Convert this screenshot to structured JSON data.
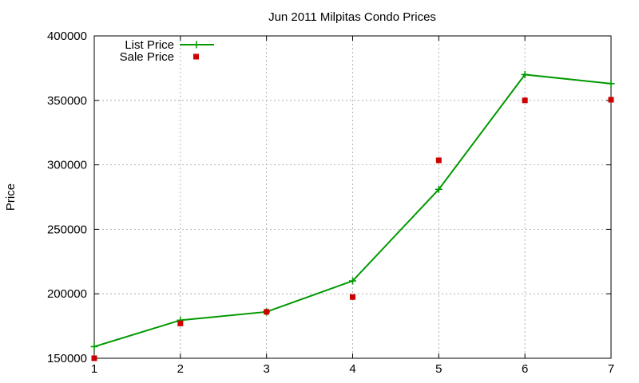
{
  "chart_data": {
    "type": "line",
    "title": "Jun 2011 Milpitas Condo Prices",
    "xlabel": "",
    "ylabel": "Price",
    "x": [
      1,
      2,
      3,
      4,
      5,
      6,
      7
    ],
    "xticks": [
      "1",
      "2",
      "3",
      "4",
      "5",
      "6",
      "7"
    ],
    "yticks": [
      "150000",
      "200000",
      "250000",
      "300000",
      "350000",
      "400000"
    ],
    "ytick_values": [
      150000,
      200000,
      250000,
      300000,
      350000,
      400000
    ],
    "xlim": [
      1,
      7
    ],
    "ylim": [
      150000,
      400000
    ],
    "grid": true,
    "legend_position": "top-left",
    "series": [
      {
        "name": "List Price",
        "style": "line+cross",
        "color": "#009900",
        "values": [
          159000,
          179500,
          186000,
          210000,
          281000,
          370000,
          363000
        ]
      },
      {
        "name": "Sale Price",
        "style": "square",
        "color": "#cc0000",
        "values": [
          150000,
          177000,
          186000,
          197500,
          303500,
          350000,
          350500
        ]
      }
    ]
  }
}
